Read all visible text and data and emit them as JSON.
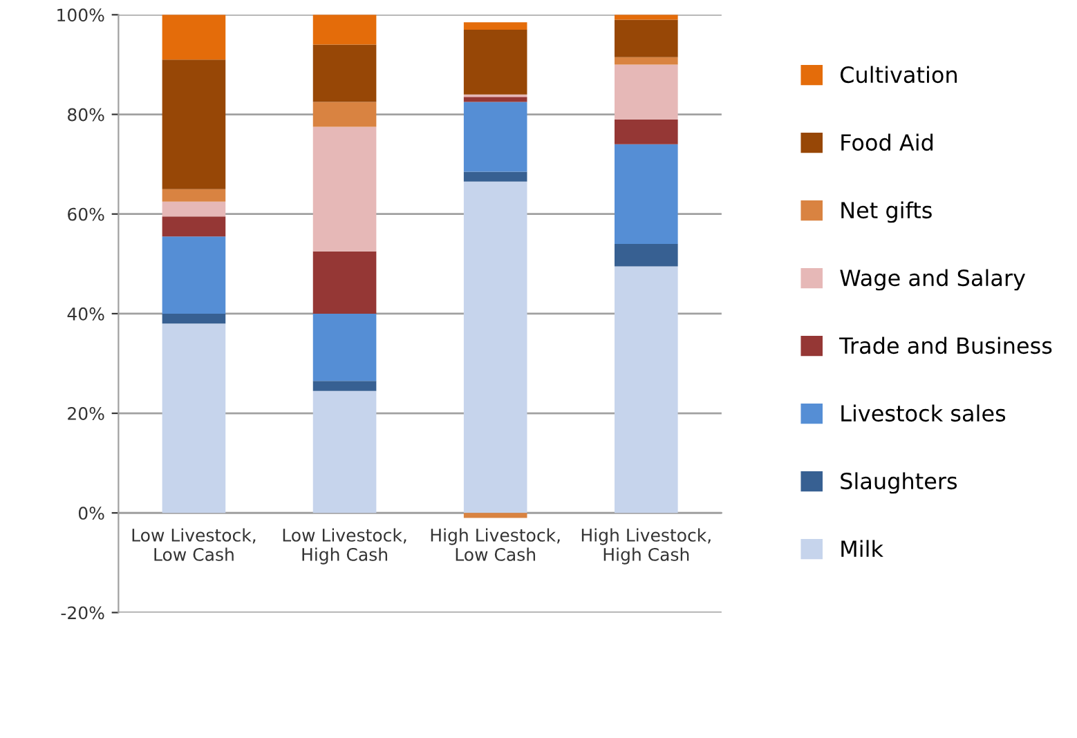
{
  "chart_data": {
    "type": "bar",
    "stacked": true,
    "categories": [
      "Low Livestock, Low Cash",
      "Low Livestock, High Cash",
      "High Livestock, Low Cash",
      "High Livestock, High Cash"
    ],
    "series": [
      {
        "name": "Milk",
        "color": "#c6d4ec",
        "values": [
          38,
          24.5,
          66.5,
          49.5
        ]
      },
      {
        "name": "Slaughters",
        "color": "#376092",
        "values": [
          2,
          2,
          2,
          4.5
        ]
      },
      {
        "name": "Livestock sales",
        "color": "#558ed5",
        "values": [
          15.5,
          13.5,
          14,
          20
        ]
      },
      {
        "name": "Trade and Business",
        "color": "#953735",
        "values": [
          4,
          12.5,
          1,
          5
        ]
      },
      {
        "name": "Wage and Salary",
        "color": "#e6b8b7",
        "values": [
          3,
          25,
          0.5,
          11
        ]
      },
      {
        "name": "Net gifts",
        "color": "#d98341",
        "values": [
          2.5,
          5,
          -1,
          1.5
        ]
      },
      {
        "name": "Food Aid",
        "color": "#974706",
        "values": [
          26,
          11.5,
          13,
          7.5
        ]
      },
      {
        "name": "Cultivation",
        "color": "#e46c0a",
        "values": [
          9,
          6,
          1.5,
          1
        ]
      }
    ],
    "ylim": [
      -20,
      100
    ],
    "yticks": [
      {
        "value": -20,
        "label": "-20%"
      },
      {
        "value": 0,
        "label": "0%"
      },
      {
        "value": 20,
        "label": "20%"
      },
      {
        "value": 40,
        "label": "40%"
      },
      {
        "value": 60,
        "label": "60%"
      },
      {
        "value": 80,
        "label": "80%"
      },
      {
        "value": 100,
        "label": "100%"
      }
    ],
    "grid": "y",
    "legend": "right"
  }
}
